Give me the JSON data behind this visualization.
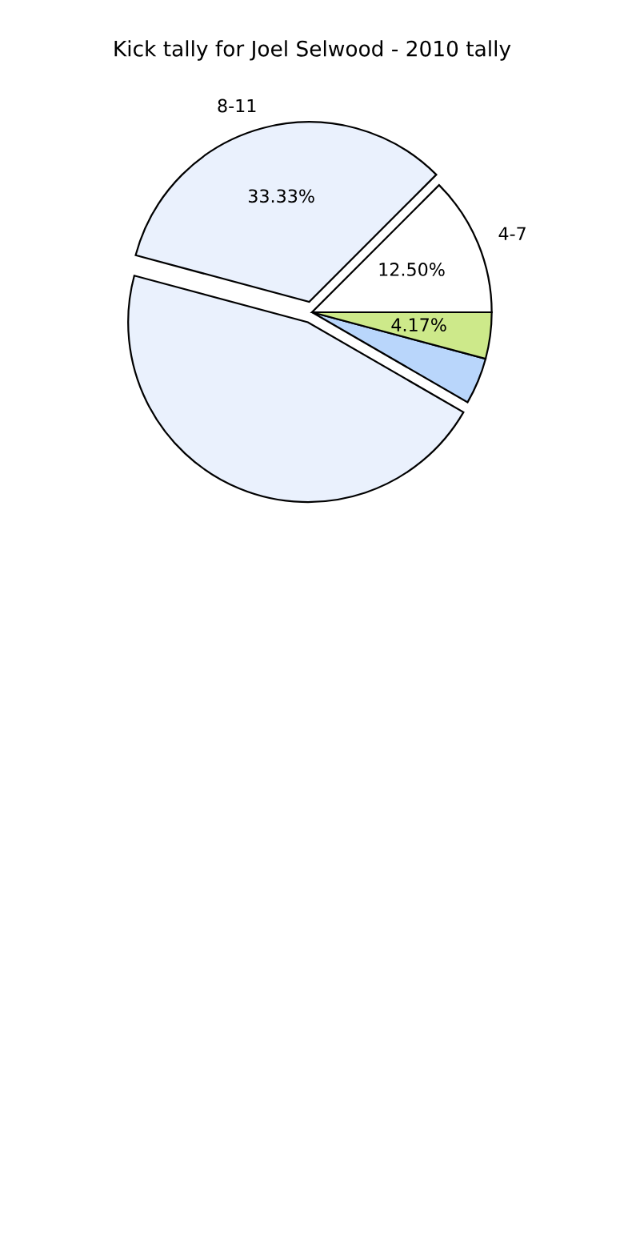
{
  "chart_data": {
    "type": "pie",
    "title": "Kick tally for Joel Selwood - 2010 tally",
    "categories": [
      "4-7",
      "8-11",
      null,
      null,
      null
    ],
    "values": [
      12.5,
      33.33,
      45.83,
      4.17,
      4.17
    ],
    "colors": [
      "#ffffff",
      "#eaf1fd",
      "#eaf1fd",
      "#b9d6fb",
      "#cde98a"
    ],
    "value_labels": [
      "12.50%",
      "33.33%",
      null,
      null,
      "4.17%"
    ],
    "legend": false
  }
}
